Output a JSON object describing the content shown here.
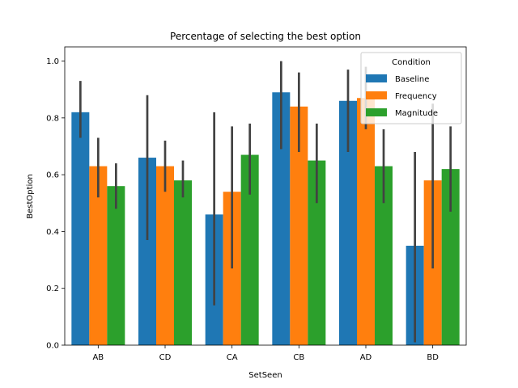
{
  "chart_data": {
    "type": "bar",
    "title": "Percentage of selecting the best option",
    "xlabel": "SetSeen",
    "ylabel": "BestOption",
    "categories": [
      "AB",
      "CD",
      "CA",
      "CB",
      "AD",
      "BD"
    ],
    "ylim": [
      0,
      1.05
    ],
    "yticks": [
      "0.0",
      "0.2",
      "0.4",
      "0.6",
      "0.8",
      "1.0"
    ],
    "legend": {
      "title": "Condition",
      "placement": "top-right"
    },
    "series": [
      {
        "name": "Baseline",
        "color": "#1f77b4",
        "values": [
          0.82,
          0.66,
          0.46,
          0.89,
          0.86,
          0.35
        ],
        "ci": [
          [
            0.73,
            0.93
          ],
          [
            0.37,
            0.88
          ],
          [
            0.14,
            0.82
          ],
          [
            0.69,
            1.0
          ],
          [
            0.68,
            0.97
          ],
          [
            0.01,
            0.68
          ]
        ]
      },
      {
        "name": "Frequency",
        "color": "#ff7f0e",
        "values": [
          0.63,
          0.63,
          0.54,
          0.84,
          0.87,
          0.58
        ],
        "ci": [
          [
            0.52,
            0.73
          ],
          [
            0.54,
            0.72
          ],
          [
            0.27,
            0.77
          ],
          [
            0.68,
            0.96
          ],
          [
            0.76,
            0.98
          ],
          [
            0.27,
            0.85
          ]
        ]
      },
      {
        "name": "Magnitude",
        "color": "#2ca02c",
        "values": [
          0.56,
          0.58,
          0.67,
          0.65,
          0.63,
          0.62
        ],
        "ci": [
          [
            0.48,
            0.64
          ],
          [
            0.52,
            0.65
          ],
          [
            0.53,
            0.78
          ],
          [
            0.5,
            0.78
          ],
          [
            0.5,
            0.76
          ],
          [
            0.47,
            0.77
          ]
        ]
      }
    ]
  }
}
